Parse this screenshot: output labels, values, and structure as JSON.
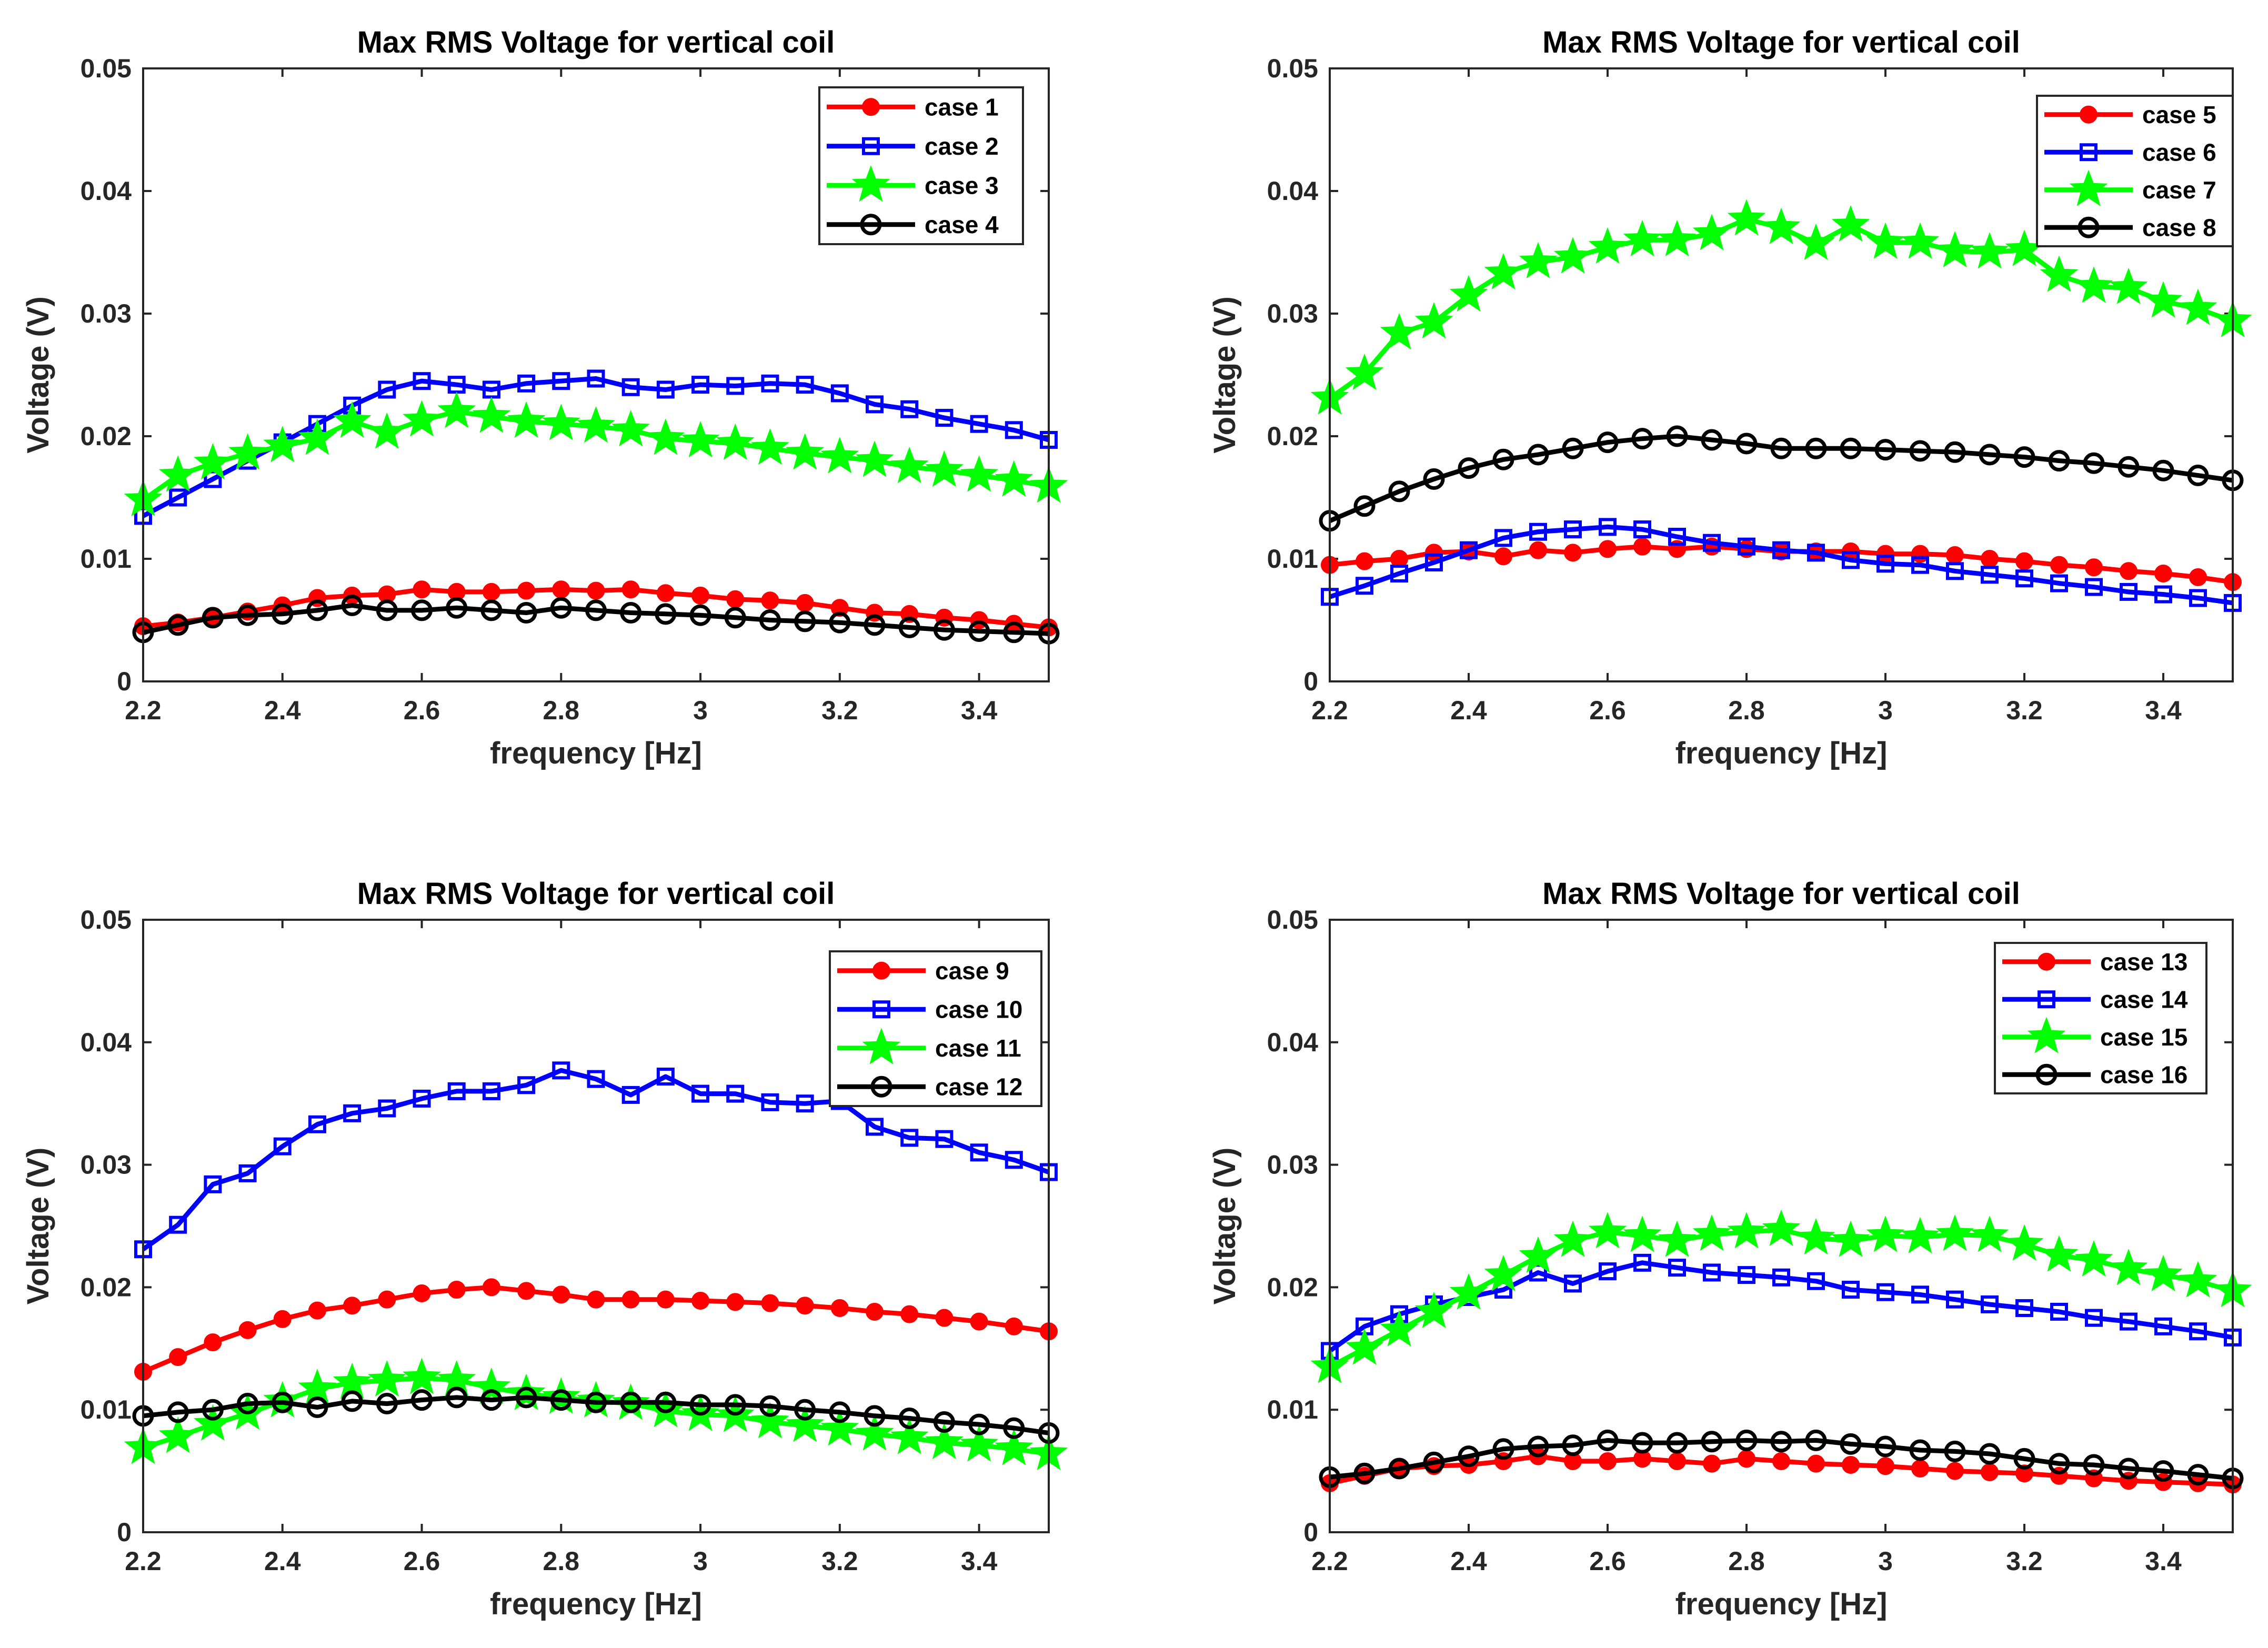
{
  "chart_data": [
    {
      "type": "line",
      "title": "Max RMS Voltage for vertical coil",
      "xlabel": "frequency [Hz]",
      "ylabel": "Voltage (V)",
      "xlim": [
        2.2,
        3.5
      ],
      "ylim": [
        0,
        0.05
      ],
      "xticks": [
        "2.2",
        "2.4",
        "2.6",
        "2.8",
        "3",
        "3.2",
        "3.4"
      ],
      "yticks": [
        "0",
        "0.01",
        "0.02",
        "0.03",
        "0.04",
        "0.05"
      ],
      "legend_position": "top-right",
      "x": [
        2.2,
        2.25,
        2.3,
        2.35,
        2.4,
        2.45,
        2.5,
        2.55,
        2.6,
        2.65,
        2.7,
        2.75,
        2.8,
        2.85,
        2.9,
        2.95,
        3.0,
        3.05,
        3.1,
        3.15,
        3.2,
        3.25,
        3.3,
        3.35,
        3.4,
        3.45,
        3.5
      ],
      "series": [
        {
          "name": "case 1",
          "color": "#ff0000",
          "marker": "circle",
          "values": [
            0.0045,
            0.0048,
            0.0052,
            0.0057,
            0.0062,
            0.0068,
            0.007,
            0.0071,
            0.0075,
            0.0073,
            0.0073,
            0.0074,
            0.0075,
            0.0074,
            0.0075,
            0.0072,
            0.007,
            0.0067,
            0.0066,
            0.0064,
            0.006,
            0.0056,
            0.0055,
            0.0052,
            0.005,
            0.0047,
            0.0044
          ]
        },
        {
          "name": "case 2",
          "color": "#0000ff",
          "marker": "square",
          "values": [
            0.0135,
            0.015,
            0.0165,
            0.018,
            0.0195,
            0.021,
            0.0225,
            0.0238,
            0.0245,
            0.0242,
            0.0238,
            0.0243,
            0.0245,
            0.0247,
            0.024,
            0.0238,
            0.0242,
            0.0241,
            0.0243,
            0.0242,
            0.0235,
            0.0226,
            0.0222,
            0.0215,
            0.021,
            0.0205,
            0.0197
          ]
        },
        {
          "name": "case 3",
          "color": "#00ff00",
          "marker": "star",
          "values": [
            0.0148,
            0.0168,
            0.0178,
            0.0186,
            0.0192,
            0.0198,
            0.0212,
            0.0203,
            0.0213,
            0.022,
            0.0216,
            0.0212,
            0.021,
            0.0208,
            0.0205,
            0.0198,
            0.0196,
            0.0194,
            0.019,
            0.0186,
            0.0183,
            0.018,
            0.0175,
            0.0172,
            0.0168,
            0.0164,
            0.0159
          ]
        },
        {
          "name": "case 4",
          "color": "#000000",
          "marker": "circle-open",
          "values": [
            0.004,
            0.0046,
            0.0052,
            0.0054,
            0.0055,
            0.0058,
            0.0062,
            0.0058,
            0.0058,
            0.006,
            0.0058,
            0.0056,
            0.006,
            0.0058,
            0.0056,
            0.0055,
            0.0054,
            0.0052,
            0.005,
            0.0049,
            0.0048,
            0.0046,
            0.0044,
            0.0042,
            0.0041,
            0.004,
            0.0039
          ]
        }
      ]
    },
    {
      "type": "line",
      "title": "Max RMS Voltage for vertical coil",
      "xlabel": "frequency [Hz]",
      "ylabel": "Voltage (V)",
      "xlim": [
        2.2,
        3.5
      ],
      "ylim": [
        0,
        0.05
      ],
      "xticks": [
        "2.2",
        "2.4",
        "2.6",
        "2.8",
        "3",
        "3.2",
        "3.4"
      ],
      "yticks": [
        "0",
        "0.01",
        "0.02",
        "0.03",
        "0.04",
        "0.05"
      ],
      "legend_position": "top-right",
      "x": [
        2.2,
        2.25,
        2.3,
        2.35,
        2.4,
        2.45,
        2.5,
        2.55,
        2.6,
        2.65,
        2.7,
        2.75,
        2.8,
        2.85,
        2.9,
        2.95,
        3.0,
        3.05,
        3.1,
        3.15,
        3.2,
        3.25,
        3.3,
        3.35,
        3.4,
        3.45,
        3.5
      ],
      "series": [
        {
          "name": "case 5",
          "color": "#ff0000",
          "marker": "circle",
          "values": [
            0.0095,
            0.0098,
            0.01,
            0.0105,
            0.0106,
            0.0102,
            0.0107,
            0.0105,
            0.0108,
            0.011,
            0.0108,
            0.011,
            0.0108,
            0.0106,
            0.0106,
            0.0106,
            0.0104,
            0.0104,
            0.0103,
            0.01,
            0.0098,
            0.0095,
            0.0093,
            0.009,
            0.0088,
            0.0085,
            0.0081
          ]
        },
        {
          "name": "case 6",
          "color": "#0000ff",
          "marker": "square",
          "values": [
            0.0069,
            0.0078,
            0.0088,
            0.0097,
            0.0107,
            0.0117,
            0.0122,
            0.0124,
            0.0126,
            0.0124,
            0.0118,
            0.0113,
            0.011,
            0.0107,
            0.0105,
            0.0099,
            0.0096,
            0.0095,
            0.009,
            0.0087,
            0.0084,
            0.008,
            0.0077,
            0.0073,
            0.0071,
            0.0068,
            0.0064
          ]
        },
        {
          "name": "case 7",
          "color": "#00ff00",
          "marker": "star",
          "values": [
            0.0231,
            0.0251,
            0.0284,
            0.0293,
            0.0315,
            0.0333,
            0.0342,
            0.0346,
            0.0354,
            0.036,
            0.036,
            0.0365,
            0.0377,
            0.037,
            0.0357,
            0.0372,
            0.0358,
            0.0358,
            0.0351,
            0.035,
            0.0352,
            0.0331,
            0.0322,
            0.0321,
            0.031,
            0.0304,
            0.0294
          ]
        },
        {
          "name": "case 8",
          "color": "#000000",
          "marker": "circle-open",
          "values": [
            0.0131,
            0.0143,
            0.0155,
            0.0165,
            0.0174,
            0.0181,
            0.0185,
            0.019,
            0.0195,
            0.0198,
            0.02,
            0.0197,
            0.0194,
            0.019,
            0.019,
            0.019,
            0.0189,
            0.0188,
            0.0187,
            0.0185,
            0.0183,
            0.018,
            0.0178,
            0.0175,
            0.0172,
            0.0168,
            0.0164
          ]
        }
      ]
    },
    {
      "type": "line",
      "title": "Max RMS Voltage for vertical coil",
      "xlabel": "frequency [Hz]",
      "ylabel": "Voltage (V)",
      "xlim": [
        2.2,
        3.5
      ],
      "ylim": [
        0,
        0.05
      ],
      "xticks": [
        "2.2",
        "2.4",
        "2.6",
        "2.8",
        "3",
        "3.2",
        "3.4"
      ],
      "yticks": [
        "0",
        "0.01",
        "0.02",
        "0.03",
        "0.04",
        "0.05"
      ],
      "legend_position": "top-right",
      "x": [
        2.2,
        2.25,
        2.3,
        2.35,
        2.4,
        2.45,
        2.5,
        2.55,
        2.6,
        2.65,
        2.7,
        2.75,
        2.8,
        2.85,
        2.9,
        2.95,
        3.0,
        3.05,
        3.1,
        3.15,
        3.2,
        3.25,
        3.3,
        3.35,
        3.4,
        3.45,
        3.5
      ],
      "series": [
        {
          "name": "case 9",
          "color": "#ff0000",
          "marker": "circle",
          "values": [
            0.0131,
            0.0143,
            0.0155,
            0.0165,
            0.0174,
            0.0181,
            0.0185,
            0.019,
            0.0195,
            0.0198,
            0.02,
            0.0197,
            0.0194,
            0.019,
            0.019,
            0.019,
            0.0189,
            0.0188,
            0.0187,
            0.0185,
            0.0183,
            0.018,
            0.0178,
            0.0175,
            0.0172,
            0.0168,
            0.0164
          ]
        },
        {
          "name": "case 10",
          "color": "#0000ff",
          "marker": "square",
          "values": [
            0.0231,
            0.0251,
            0.0284,
            0.0293,
            0.0315,
            0.0333,
            0.0342,
            0.0346,
            0.0354,
            0.036,
            0.036,
            0.0365,
            0.0377,
            0.037,
            0.0357,
            0.0372,
            0.0358,
            0.0358,
            0.0351,
            0.035,
            0.0352,
            0.0331,
            0.0322,
            0.0321,
            0.031,
            0.0304,
            0.0294
          ]
        },
        {
          "name": "case 11",
          "color": "#00ff00",
          "marker": "star",
          "values": [
            0.0069,
            0.0078,
            0.0088,
            0.0097,
            0.0107,
            0.0117,
            0.0122,
            0.0124,
            0.0126,
            0.0124,
            0.0118,
            0.0113,
            0.011,
            0.0107,
            0.0105,
            0.0099,
            0.0096,
            0.0095,
            0.009,
            0.0087,
            0.0084,
            0.008,
            0.0077,
            0.0073,
            0.0071,
            0.0068,
            0.0064
          ]
        },
        {
          "name": "case 12",
          "color": "#000000",
          "marker": "circle-open",
          "values": [
            0.0095,
            0.0098,
            0.01,
            0.0105,
            0.0106,
            0.0102,
            0.0107,
            0.0105,
            0.0108,
            0.011,
            0.0108,
            0.011,
            0.0108,
            0.0106,
            0.0106,
            0.0106,
            0.0104,
            0.0104,
            0.0103,
            0.01,
            0.0098,
            0.0095,
            0.0093,
            0.009,
            0.0088,
            0.0085,
            0.0081
          ]
        }
      ]
    },
    {
      "type": "line",
      "title": "Max RMS Voltage for vertical coil",
      "xlabel": "frequency [Hz]",
      "ylabel": "Voltage (V)",
      "xlim": [
        2.2,
        3.5
      ],
      "ylim": [
        0,
        0.05
      ],
      "xticks": [
        "2.2",
        "2.4",
        "2.6",
        "2.8",
        "3",
        "3.2",
        "3.4"
      ],
      "yticks": [
        "0",
        "0.01",
        "0.02",
        "0.03",
        "0.04",
        "0.05"
      ],
      "legend_position": "top-right",
      "x": [
        2.2,
        2.25,
        2.3,
        2.35,
        2.4,
        2.45,
        2.5,
        2.55,
        2.6,
        2.65,
        2.7,
        2.75,
        2.8,
        2.85,
        2.9,
        2.95,
        3.0,
        3.05,
        3.1,
        3.15,
        3.2,
        3.25,
        3.3,
        3.35,
        3.4,
        3.45,
        3.5
      ],
      "series": [
        {
          "name": "case 13",
          "color": "#ff0000",
          "marker": "circle",
          "values": [
            0.004,
            0.0046,
            0.0052,
            0.0054,
            0.0055,
            0.0058,
            0.0062,
            0.0058,
            0.0058,
            0.006,
            0.0058,
            0.0056,
            0.006,
            0.0058,
            0.0056,
            0.0055,
            0.0054,
            0.0052,
            0.005,
            0.0049,
            0.0048,
            0.0046,
            0.0044,
            0.0042,
            0.0041,
            0.004,
            0.0039
          ]
        },
        {
          "name": "case 14",
          "color": "#0000ff",
          "marker": "square",
          "values": [
            0.0148,
            0.0168,
            0.0178,
            0.0186,
            0.0192,
            0.0198,
            0.0212,
            0.0203,
            0.0213,
            0.022,
            0.0216,
            0.0212,
            0.021,
            0.0208,
            0.0205,
            0.0198,
            0.0196,
            0.0194,
            0.019,
            0.0186,
            0.0183,
            0.018,
            0.0175,
            0.0172,
            0.0168,
            0.0164,
            0.0159
          ]
        },
        {
          "name": "case 15",
          "color": "#00ff00",
          "marker": "star",
          "values": [
            0.0135,
            0.015,
            0.0165,
            0.018,
            0.0195,
            0.021,
            0.0225,
            0.0238,
            0.0245,
            0.0242,
            0.0238,
            0.0243,
            0.0245,
            0.0247,
            0.024,
            0.0238,
            0.0242,
            0.0241,
            0.0243,
            0.0242,
            0.0235,
            0.0226,
            0.0222,
            0.0215,
            0.021,
            0.0205,
            0.0197
          ]
        },
        {
          "name": "case 16",
          "color": "#000000",
          "marker": "circle-open",
          "values": [
            0.0045,
            0.0048,
            0.0052,
            0.0057,
            0.0062,
            0.0068,
            0.007,
            0.0071,
            0.0075,
            0.0073,
            0.0073,
            0.0074,
            0.0075,
            0.0074,
            0.0075,
            0.0072,
            0.007,
            0.0067,
            0.0066,
            0.0064,
            0.006,
            0.0056,
            0.0055,
            0.0052,
            0.005,
            0.0047,
            0.0044
          ]
        }
      ]
    }
  ]
}
